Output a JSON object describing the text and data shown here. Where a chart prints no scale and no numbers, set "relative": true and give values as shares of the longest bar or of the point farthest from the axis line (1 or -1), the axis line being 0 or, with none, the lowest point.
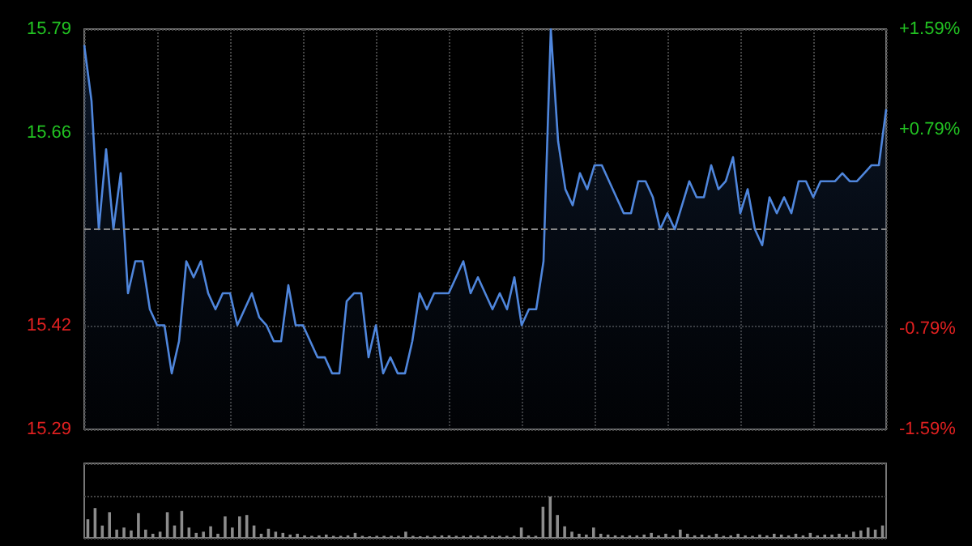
{
  "chart_data": [
    {
      "type": "area",
      "categories": [
        null,
        null,
        null,
        null,
        null,
        null,
        null,
        null,
        null,
        null,
        null,
        null,
        null,
        null,
        null,
        null,
        null,
        null,
        null,
        null,
        null,
        null,
        null,
        null,
        null,
        null,
        null,
        null,
        null,
        null,
        null,
        null,
        null,
        null,
        null,
        null,
        null,
        null,
        null,
        null,
        null,
        null,
        null,
        null,
        null,
        null,
        null,
        null,
        null,
        null,
        null,
        null,
        null,
        null,
        null,
        null,
        null,
        null,
        null,
        null,
        null,
        null,
        null,
        null,
        null,
        null,
        null,
        null,
        null,
        null,
        null,
        null,
        null,
        null,
        null,
        null,
        null,
        null,
        null,
        null,
        null,
        null,
        null,
        null,
        null,
        null,
        null,
        null,
        null,
        null,
        null,
        null,
        null,
        null,
        null,
        null,
        null,
        null,
        null,
        null,
        null,
        null,
        null,
        null,
        null,
        null,
        null,
        null,
        null,
        null,
        null
      ],
      "series": [
        {
          "color": "#4f86dc",
          "values": [
            15.77,
            15.7,
            15.54,
            15.64,
            15.54,
            15.61,
            15.46,
            15.5,
            15.5,
            15.44,
            15.42,
            15.42,
            15.36,
            15.4,
            15.5,
            15.48,
            15.5,
            15.46,
            15.44,
            15.46,
            15.46,
            15.42,
            15.44,
            15.46,
            15.43,
            15.42,
            15.4,
            15.4,
            15.47,
            15.42,
            15.42,
            15.4,
            15.38,
            15.38,
            15.36,
            15.36,
            15.45,
            15.46,
            15.46,
            15.38,
            15.42,
            15.36,
            15.38,
            15.36,
            15.36,
            15.4,
            15.46,
            15.44,
            15.46,
            15.46,
            15.46,
            15.48,
            15.5,
            15.46,
            15.48,
            15.46,
            15.44,
            15.46,
            15.44,
            15.48,
            15.42,
            15.44,
            15.44,
            15.5,
            15.79,
            15.65,
            15.59,
            15.57,
            15.61,
            15.59,
            15.62,
            15.62,
            15.6,
            15.58,
            15.56,
            15.56,
            15.6,
            15.6,
            15.58,
            15.54,
            15.56,
            15.54,
            15.57,
            15.6,
            15.58,
            15.58,
            15.62,
            15.59,
            15.6,
            15.63,
            15.56,
            15.59,
            15.54,
            15.52,
            15.58,
            15.56,
            15.58,
            15.56,
            15.6,
            15.6,
            15.58,
            15.6,
            15.6,
            15.6,
            15.61,
            15.6,
            15.6,
            15.61,
            15.62,
            15.62,
            15.69
          ]
        }
      ],
      "ylim": [
        15.29,
        15.79
      ],
      "yticks": [
        15.79,
        15.66,
        15.42,
        15.29
      ],
      "y2lim": [
        -1.59,
        1.59
      ],
      "y2ticks": [
        {
          "value": 1.59,
          "label": "+1.59%"
        },
        {
          "value": 0.79,
          "label": "+0.79%"
        },
        {
          "value": -0.79,
          "label": "-0.79%"
        },
        {
          "value": -1.59,
          "label": "-1.59%"
        }
      ],
      "ref_lines": [
        {
          "axis": "y",
          "value": 15.54,
          "label": null
        }
      ],
      "grid": true,
      "tick_labels": "y"
    },
    {
      "type": "bar",
      "relative": true,
      "categories": [
        null,
        null,
        null,
        null,
        null,
        null,
        null,
        null,
        null,
        null,
        null,
        null,
        null,
        null,
        null,
        null,
        null,
        null,
        null,
        null,
        null,
        null,
        null,
        null,
        null,
        null,
        null,
        null,
        null,
        null,
        null,
        null,
        null,
        null,
        null,
        null,
        null,
        null,
        null,
        null,
        null,
        null,
        null,
        null,
        null,
        null,
        null,
        null,
        null,
        null,
        null,
        null,
        null,
        null,
        null,
        null,
        null,
        null,
        null,
        null,
        null,
        null,
        null,
        null,
        null,
        null,
        null,
        null,
        null,
        null,
        null,
        null,
        null,
        null,
        null,
        null,
        null,
        null,
        null,
        null,
        null,
        null,
        null,
        null,
        null,
        null,
        null,
        null,
        null,
        null,
        null,
        null,
        null,
        null,
        null,
        null,
        null,
        null,
        null,
        null,
        null,
        null,
        null,
        null,
        null,
        null,
        null,
        null,
        null,
        null,
        null
      ],
      "series": [
        {
          "color": "#8c8c8c",
          "values": [
            0.45,
            0.72,
            0.3,
            0.62,
            0.2,
            0.25,
            0.18,
            0.6,
            0.2,
            0.1,
            0.15,
            0.62,
            0.3,
            0.65,
            0.25,
            0.12,
            0.15,
            0.28,
            0.1,
            0.52,
            0.25,
            0.52,
            0.55,
            0.3,
            0.1,
            0.22,
            0.15,
            0.12,
            0.08,
            0.1,
            0.06,
            0.05,
            0.06,
            0.08,
            0.05,
            0.05,
            0.06,
            0.12,
            0.05,
            0.04,
            0.05,
            0.05,
            0.05,
            0.05,
            0.15,
            0.05,
            0.04,
            0.05,
            0.05,
            0.06,
            0.06,
            0.05,
            0.05,
            0.06,
            0.05,
            0.06,
            0.05,
            0.05,
            0.05,
            0.05,
            0.25,
            0.06,
            0.05,
            0.75,
            1,
            0.55,
            0.28,
            0.15,
            0.1,
            0.08,
            0.25,
            0.1,
            0.08,
            0.06,
            0.06,
            0.06,
            0.06,
            0.08,
            0.12,
            0.06,
            0.1,
            0.06,
            0.2,
            0.1,
            0.06,
            0.08,
            0.06,
            0.1,
            0.05,
            0.06,
            0.1,
            0.06,
            0.05,
            0.08,
            0.06,
            0.1,
            0.08,
            0.06,
            0.1,
            0.06,
            0.12,
            0.06,
            0.08,
            0.08,
            0.1,
            0.08,
            0.15,
            0.18,
            0.25,
            0.2,
            0.3
          ]
        }
      ],
      "grid": "y",
      "tick_labels": false
    }
  ]
}
